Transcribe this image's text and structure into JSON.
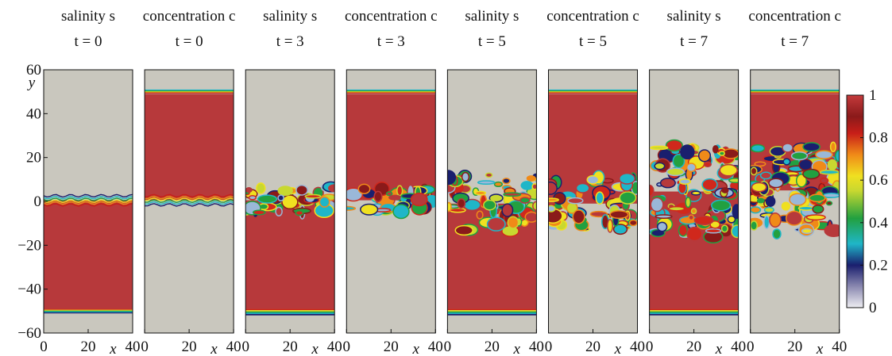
{
  "chart_data": [
    {
      "type": "heatmap",
      "title": "salinity s",
      "subtitle": "t = 0",
      "xlabel": "x",
      "ylabel": "y",
      "xlim": [
        0,
        40
      ],
      "ylim": [
        -60,
        60
      ],
      "xticks": [
        0,
        20,
        40
      ],
      "yticks": [
        {
          "value": -60,
          "label": "−60"
        },
        {
          "value": -40,
          "label": "−40"
        },
        {
          "value": -20,
          "label": "−20"
        },
        0,
        20,
        40,
        60
      ]
    },
    {
      "type": "heatmap",
      "title": "concentration c",
      "subtitle": "t = 0",
      "xlabel": "x",
      "xlim": [
        0,
        40
      ],
      "ylim": [
        -60,
        60
      ],
      "xticks": [
        0,
        20,
        40
      ]
    },
    {
      "type": "heatmap",
      "title": "salinity s",
      "subtitle": "t = 3",
      "xlabel": "x",
      "xlim": [
        0,
        40
      ],
      "ylim": [
        -60,
        60
      ],
      "xticks": [
        0,
        20,
        40
      ]
    },
    {
      "type": "heatmap",
      "title": "concentration c",
      "subtitle": "t = 3",
      "xlabel": "x",
      "xlim": [
        0,
        40
      ],
      "ylim": [
        -60,
        60
      ],
      "xticks": [
        0,
        20,
        40
      ]
    },
    {
      "type": "heatmap",
      "title": "salinity s",
      "subtitle": "t = 5",
      "xlabel": "x",
      "xlim": [
        0,
        40
      ],
      "ylim": [
        -60,
        60
      ],
      "xticks": [
        0,
        20,
        40
      ]
    },
    {
      "type": "heatmap",
      "title": "concentration c",
      "subtitle": "t = 5",
      "xlabel": "x",
      "xlim": [
        0,
        40
      ],
      "ylim": [
        -60,
        60
      ],
      "xticks": [
        0,
        20,
        40
      ]
    },
    {
      "type": "heatmap",
      "title": "salinity s",
      "subtitle": "t = 7",
      "xlabel": "x",
      "xlim": [
        0,
        40
      ],
      "ylim": [
        -60,
        60
      ],
      "xticks": [
        0,
        20,
        40
      ]
    },
    {
      "type": "heatmap",
      "title": "concentration c",
      "subtitle": "t = 7",
      "xlabel": "x",
      "xlim": [
        0,
        40
      ],
      "ylim": [
        -60,
        60
      ],
      "xticks": [
        0,
        20,
        40
      ]
    }
  ],
  "colorbar": {
    "ylim": [
      0,
      1
    ],
    "yticks": [
      0,
      0.2,
      0.4,
      0.6,
      0.8,
      1
    ]
  }
}
